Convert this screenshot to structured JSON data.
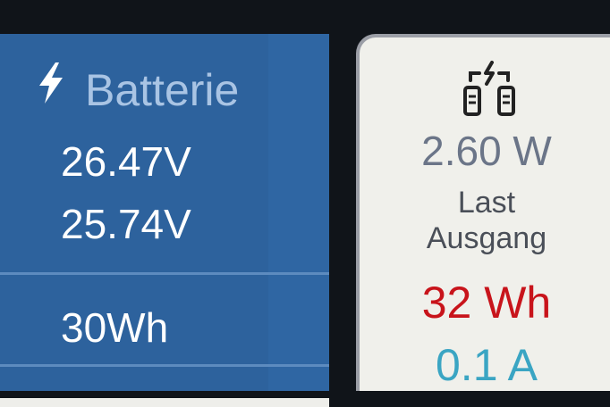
{
  "battery": {
    "title": "Batterie",
    "icon": "lightning-bolt-icon",
    "voltage_1": "26.47V",
    "voltage_2": "25.74V",
    "energy": "30Wh"
  },
  "load": {
    "icon": "dc-load-plug-icon",
    "power": "2.60 W",
    "label_line_1": "Last",
    "label_line_2": "Ausgang",
    "energy": "32 Wh",
    "current": "0.1 A"
  },
  "colors": {
    "battery_panel_bg": "#2f66a3",
    "battery_title": "#a9c4e4",
    "load_panel_bg": "#f0f0eb",
    "load_power": "#6b7588",
    "load_energy": "#c8141b",
    "load_current": "#3aa5c3"
  }
}
